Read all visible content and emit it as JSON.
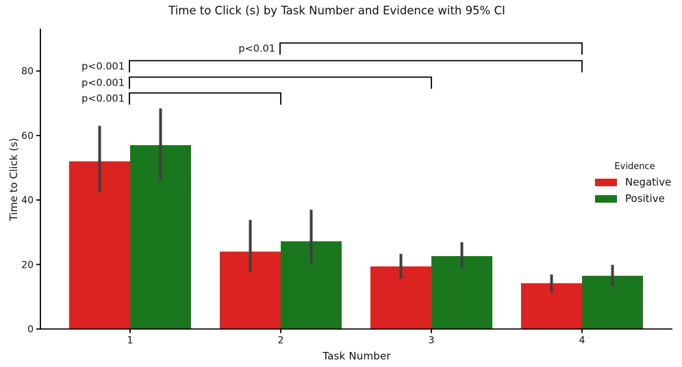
{
  "chart_data": {
    "type": "bar",
    "title": "Time to Click (s) by Task Number and Evidence with 95% CI",
    "xlabel": "Task Number",
    "ylabel": "Time to Click (s)",
    "categories": [
      "1",
      "2",
      "3",
      "4"
    ],
    "series": [
      {
        "name": "Negative",
        "color": "#dc2321",
        "values": [
          52,
          24,
          19.4,
          14.2
        ],
        "ci_low": [
          42.4,
          17.8,
          15.6,
          11.3
        ],
        "ci_high": [
          63,
          33.8,
          23.3,
          16.9
        ]
      },
      {
        "name": "Positive",
        "color": "#1b771d",
        "values": [
          57,
          27.2,
          22.6,
          16.5
        ],
        "ci_low": [
          46.4,
          20.3,
          18.7,
          13.4
        ],
        "ci_high": [
          68.4,
          37,
          26.9,
          19.9
        ]
      }
    ],
    "ylim": [
      0,
      93
    ],
    "yticks": [
      0,
      20,
      40,
      60,
      80
    ],
    "grid": false,
    "legend": {
      "title": "Evidence",
      "position": "right",
      "frame": false
    },
    "error_bar_color": "#3f3f3f",
    "axis_color": "#000000",
    "annotations": [
      {
        "label": "p<0.01",
        "from": "2",
        "to": "4",
        "height": 88.7
      },
      {
        "label": "p<0.001",
        "from": "1",
        "to": "4",
        "height": 83.2
      },
      {
        "label": "p<0.001",
        "from": "1",
        "to": "3",
        "height": 78.1
      },
      {
        "label": "p<0.001",
        "from": "1",
        "to": "2",
        "height": 73.2
      }
    ]
  }
}
